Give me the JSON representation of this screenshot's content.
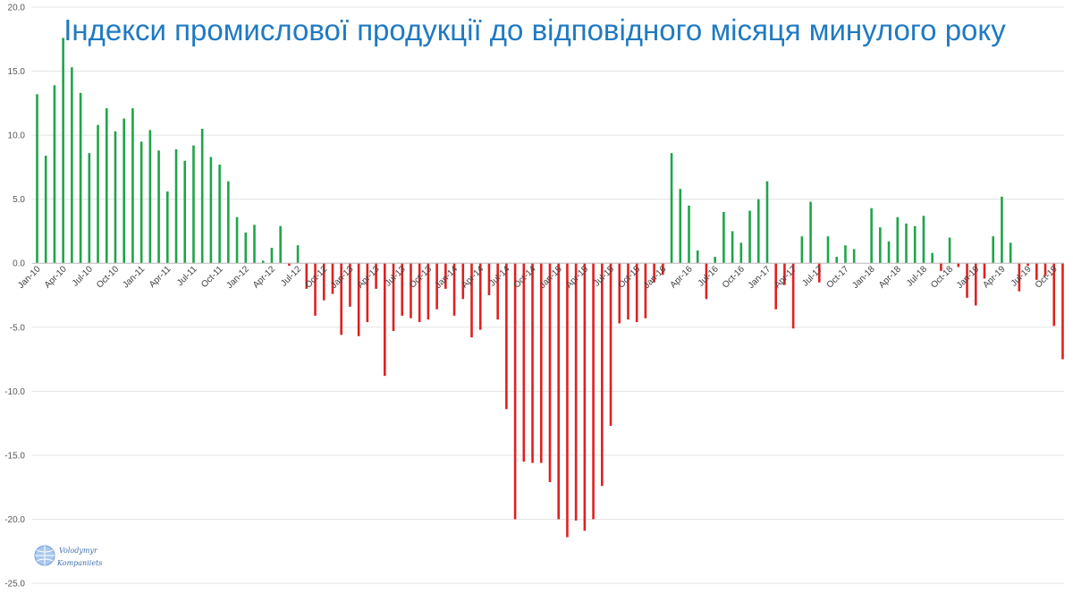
{
  "chart_data": {
    "type": "bar",
    "title": "Індекси промислової продукції до відповідного місяця минулого року",
    "xlabel": "",
    "ylabel": "",
    "ylim": [
      -25,
      20
    ],
    "yticks": [
      20,
      15,
      10,
      5,
      0,
      -5,
      -10,
      -15,
      -20,
      -25
    ],
    "grid": true,
    "legend": "none",
    "start_month": "Jan-10",
    "tick_labels": [
      "Jan-10",
      "Apr-10",
      "Jul-10",
      "Oct-10",
      "Jan-11",
      "Apr-11",
      "Jul-11",
      "Oct-11",
      "Jan-12",
      "Apr-12",
      "Jul-12",
      "Oct-12",
      "Jan-13",
      "Apr-13",
      "Jul-13",
      "Oct-13",
      "Jan-14",
      "Apr-14",
      "Jul-14",
      "Oct-14",
      "Jan-15",
      "Apr-15",
      "Jul-15",
      "Oct-15",
      "Jan-16",
      "Apr-16",
      "Jul-16",
      "Oct-16",
      "Jan-17",
      "Apr-17",
      "Jul-17",
      "Oct-17",
      "Jan-18",
      "Apr-18",
      "Jul-18",
      "Oct-18",
      "Jan-19",
      "Apr-19",
      "Jul-19",
      "Oct-19"
    ],
    "values": [
      13.2,
      8.4,
      13.9,
      17.6,
      15.3,
      13.3,
      8.6,
      10.8,
      12.1,
      10.3,
      11.3,
      12.1,
      9.5,
      10.4,
      8.8,
      5.6,
      8.9,
      8.0,
      9.2,
      10.5,
      8.3,
      7.7,
      6.4,
      3.6,
      2.4,
      3.0,
      0.2,
      1.2,
      2.9,
      -0.2,
      1.4,
      -2.0,
      -4.1,
      -2.9,
      -2.4,
      -5.6,
      -3.4,
      -5.7,
      -4.6,
      -2.0,
      -8.8,
      -5.3,
      -4.1,
      -4.3,
      -4.6,
      -4.4,
      -3.6,
      -2.0,
      -4.1,
      -2.8,
      -5.8,
      -5.2,
      -2.5,
      -4.4,
      -11.4,
      -20.0,
      -15.5,
      -15.6,
      -15.6,
      -17.1,
      -20.0,
      -21.4,
      -20.1,
      -20.9,
      -20.0,
      -17.4,
      -12.7,
      -4.7,
      -4.4,
      -4.6,
      -4.3,
      -1.5,
      -0.9,
      8.6,
      5.8,
      4.5,
      1.0,
      -2.8,
      0.5,
      4.0,
      2.5,
      1.6,
      4.1,
      5.0,
      6.4,
      -3.6,
      -1.7,
      -5.1,
      2.1,
      4.8,
      -1.5,
      2.1,
      0.5,
      1.4,
      1.1,
      0.0,
      4.3,
      2.8,
      1.7,
      3.6,
      3.1,
      2.9,
      3.7,
      0.8,
      -0.6,
      2.0,
      -0.3,
      -2.7,
      -3.3,
      -1.2,
      2.1,
      5.2,
      1.6,
      -2.2,
      -0.2,
      -1.3,
      -1.0,
      -4.9,
      -7.5
    ],
    "colors": {
      "positive": "#1fa54a",
      "negative": "#e02020"
    }
  },
  "title_color": "#1f7ac2",
  "watermark": {
    "line1": "Volodymyr",
    "line2": "Kompaniiets",
    "icon": "globe-icon"
  }
}
